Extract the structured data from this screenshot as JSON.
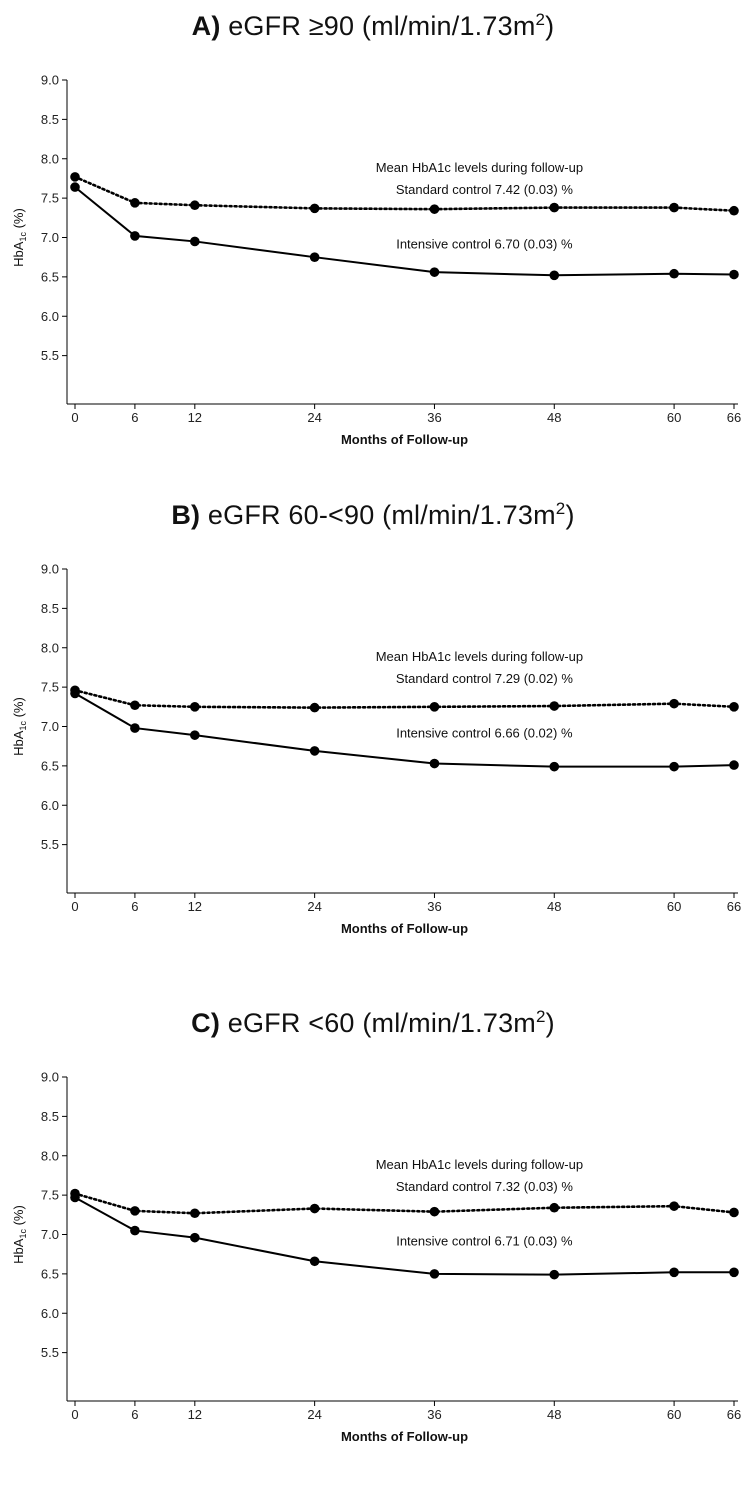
{
  "chart_data": [
    {
      "type": "line",
      "panel_letter": "A)",
      "title_main": " eGFR ≥90 (ml/min/1.73m",
      "title_sup": "2",
      "title_end": ")",
      "xlabel": "Months of Follow-up",
      "ylabel_main": "HbA",
      "ylabel_sub": "1c",
      "ylabel_end": " (%)",
      "x": [
        0,
        6,
        12,
        24,
        36,
        48,
        60,
        66
      ],
      "xticks": [
        "0",
        "6",
        "12",
        "24",
        "36",
        "48",
        "60",
        "66"
      ],
      "yticks": [
        "5.5",
        "6.0",
        "6.5",
        "7.0",
        "7.5",
        "8.0",
        "8.5",
        "9.0"
      ],
      "ylim": [
        5.0,
        9.0
      ],
      "series": [
        {
          "style": "dotted",
          "values": [
            7.77,
            7.44,
            7.41,
            7.37,
            7.36,
            7.38,
            7.38,
            7.34
          ]
        },
        {
          "style": "solid",
          "values": [
            7.64,
            7.02,
            6.95,
            6.75,
            6.56,
            6.52,
            6.54,
            6.53
          ]
        }
      ],
      "annotations": {
        "header": "Mean HbA1c levels during follow-up",
        "standard": "Standard control 7.42 (0.03) %",
        "intensive": "Intensive control 6.70 (0.03) %"
      }
    },
    {
      "type": "line",
      "panel_letter": "B)",
      "title_main": " eGFR 60-<90 (ml/min/1.73m",
      "title_sup": "2",
      "title_end": ")",
      "xlabel": "Months of Follow-up",
      "ylabel_main": "HbA",
      "ylabel_sub": "1c",
      "ylabel_end": " (%)",
      "x": [
        0,
        6,
        12,
        24,
        36,
        48,
        60,
        66
      ],
      "xticks": [
        "0",
        "6",
        "12",
        "24",
        "36",
        "48",
        "60",
        "66"
      ],
      "yticks": [
        "5.5",
        "6.0",
        "6.5",
        "7.0",
        "7.5",
        "8.0",
        "8.5",
        "9.0"
      ],
      "ylim": [
        5.0,
        9.0
      ],
      "series": [
        {
          "style": "dotted",
          "values": [
            7.46,
            7.27,
            7.25,
            7.24,
            7.25,
            7.26,
            7.29,
            7.25
          ]
        },
        {
          "style": "solid",
          "values": [
            7.42,
            6.98,
            6.89,
            6.69,
            6.53,
            6.49,
            6.49,
            6.51
          ]
        }
      ],
      "annotations": {
        "header": "Mean HbA1c levels during follow-up",
        "standard": "Standard control 7.29 (0.02) %",
        "intensive": "Intensive control 6.66 (0.02) %"
      }
    },
    {
      "type": "line",
      "panel_letter": "C)",
      "title_main": " eGFR <60 (ml/min/1.73m",
      "title_sup": "2",
      "title_end": ")",
      "xlabel": "Months of Follow-up",
      "ylabel_main": "HbA",
      "ylabel_sub": "1c",
      "ylabel_end": " (%)",
      "x": [
        0,
        6,
        12,
        24,
        36,
        48,
        60,
        66
      ],
      "xticks": [
        "0",
        "6",
        "12",
        "24",
        "36",
        "48",
        "60",
        "66"
      ],
      "yticks": [
        "5.5",
        "6.0",
        "6.5",
        "7.0",
        "7.5",
        "8.0",
        "8.5",
        "9.0"
      ],
      "ylim": [
        5.0,
        9.0
      ],
      "series": [
        {
          "style": "dotted",
          "values": [
            7.52,
            7.3,
            7.27,
            7.33,
            7.29,
            7.34,
            7.36,
            7.28
          ]
        },
        {
          "style": "solid",
          "values": [
            7.47,
            7.05,
            6.96,
            6.66,
            6.5,
            6.49,
            6.52,
            6.52
          ]
        }
      ],
      "annotations": {
        "header": "Mean HbA1c levels during follow-up",
        "standard": "Standard control 7.32 (0.03) %",
        "intensive": "Intensive control 6.71 (0.03) %"
      }
    }
  ]
}
